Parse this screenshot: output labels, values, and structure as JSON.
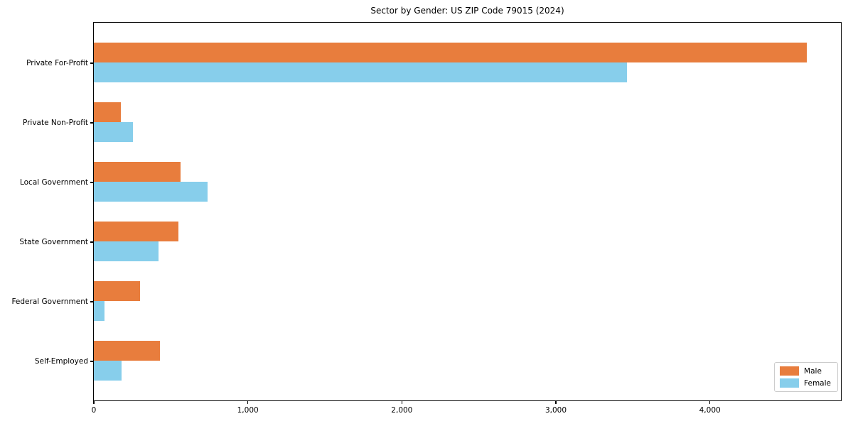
{
  "chart_data": {
    "type": "bar",
    "orientation": "horizontal",
    "title": "Sector by Gender: US ZIP Code 79015 (2024)",
    "xlabel": "",
    "ylabel": "",
    "categories": [
      "Private For-Profit",
      "Private Non-Profit",
      "Local Government",
      "State Government",
      "Federal Government",
      "Self-Employed"
    ],
    "series": [
      {
        "name": "Male",
        "color": "#E87D3D",
        "values": [
          4630,
          175,
          565,
          550,
          300,
          430
        ]
      },
      {
        "name": "Female",
        "color": "#87CEEB",
        "values": [
          3460,
          255,
          740,
          420,
          70,
          180
        ]
      }
    ],
    "xlim": [
      0,
      4860
    ],
    "x_ticks": [
      0,
      1000,
      2000,
      3000,
      4000
    ],
    "x_tick_labels": [
      "0",
      "1,000",
      "2,000",
      "3,000",
      "4,000"
    ],
    "grid": false,
    "legend_position": "lower right",
    "legend_labels": [
      "Male",
      "Female"
    ]
  },
  "colors": {
    "male": "#E87D3D",
    "female": "#87CEEB",
    "axis": "#000000",
    "legend_border": "#cccccc",
    "background": "#ffffff"
  }
}
